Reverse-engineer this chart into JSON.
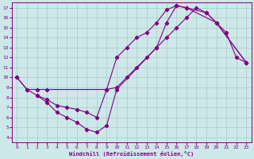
{
  "xlabel": "Windchill (Refroidissement éolien,°C)",
  "xlim": [
    0,
    23
  ],
  "ylim": [
    4,
    17
  ],
  "xticks": [
    0,
    1,
    2,
    3,
    4,
    5,
    6,
    7,
    8,
    9,
    10,
    11,
    12,
    13,
    14,
    15,
    16,
    17,
    18,
    19,
    20,
    21,
    22,
    23
  ],
  "yticks": [
    4,
    5,
    6,
    7,
    8,
    9,
    10,
    11,
    12,
    13,
    14,
    15,
    16,
    17
  ],
  "bg_color": "#cce8e8",
  "line_color": "#800080",
  "grid_color": "#b0c8c8",
  "line1_x": [
    0,
    1,
    2,
    3,
    9,
    10,
    11,
    12,
    13,
    14,
    15,
    16,
    17,
    18,
    19,
    20,
    21,
    22,
    23
  ],
  "line1_y": [
    10,
    8.8,
    8.8,
    8.8,
    8.8,
    9.0,
    10.0,
    11.0,
    12.0,
    13.0,
    14.0,
    15.0,
    16.0,
    17.0,
    16.5,
    15.5,
    14.5,
    12.0,
    11.5
  ],
  "line2_x": [
    0,
    1,
    2,
    3,
    4,
    5,
    6,
    7,
    8,
    9,
    10,
    11,
    12,
    13,
    14,
    15,
    16,
    17,
    19,
    20,
    23
  ],
  "line2_y": [
    10,
    8.8,
    8.2,
    7.8,
    7.2,
    7.0,
    6.8,
    6.5,
    6.0,
    8.8,
    12.0,
    13.0,
    14.0,
    14.5,
    15.5,
    16.8,
    17.2,
    17.0,
    16.5,
    15.5,
    11.5
  ],
  "line3_x": [
    2,
    3,
    4,
    5,
    6,
    7,
    8,
    9,
    10,
    14,
    15,
    16,
    17,
    20,
    23
  ],
  "line3_y": [
    8.2,
    7.5,
    6.5,
    6.0,
    5.5,
    4.8,
    4.5,
    5.2,
    8.8,
    13.0,
    15.5,
    17.2,
    17.0,
    15.5,
    11.5
  ]
}
